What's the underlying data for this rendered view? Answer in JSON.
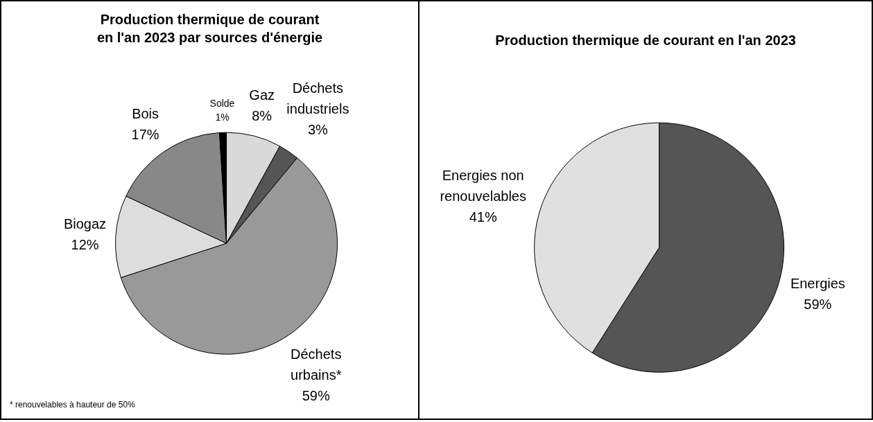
{
  "chart_data": [
    {
      "type": "pie",
      "title": "Production thermique de courant\nen l'an 2023 par sources d'énergie",
      "categories": [
        "Gaz",
        "Déchets\nindustriels",
        "Déchets\nurbains*",
        "Biogaz",
        "Bois",
        "Solde"
      ],
      "values": [
        8,
        3,
        59,
        12,
        17,
        1
      ],
      "value_labels": [
        "8%",
        "3%",
        "59%",
        "12%",
        "17%",
        "1%"
      ],
      "colors": [
        "#d9d9d9",
        "#555555",
        "#999999",
        "#dddddd",
        "#888888",
        "#000000"
      ],
      "annotations": [
        "* renouvelables à hauteur de 50%"
      ],
      "legend": false
    },
    {
      "type": "pie",
      "title": "Production thermique de courant en l'an 2023",
      "categories": [
        "Energies",
        "Energies non\nrenouvelables"
      ],
      "values": [
        59,
        41
      ],
      "value_labels": [
        "59%",
        "41%"
      ],
      "colors": [
        "#555555",
        "#e0e0e0"
      ],
      "legend": false
    }
  ]
}
